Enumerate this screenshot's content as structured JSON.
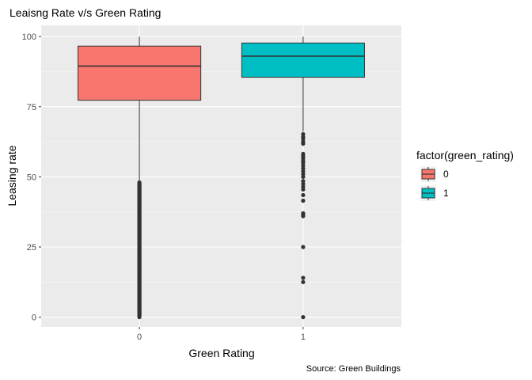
{
  "chart_data": {
    "type": "boxplot",
    "title": "Leaisng Rate v/s Green Rating",
    "xlabel": "Green Rating",
    "ylabel": "Leasing rate",
    "caption": "Source: Green Buildings",
    "categories": [
      "0",
      "1"
    ],
    "ylim": [
      -3.5,
      104
    ],
    "y_ticks": [
      0,
      25,
      50,
      75,
      100
    ],
    "grid": true,
    "legend": {
      "title": "factor(green_rating)",
      "position": "right",
      "entries": [
        {
          "label": "0",
          "color": "#F8766D"
        },
        {
          "label": "1",
          "color": "#00BFC4"
        }
      ]
    },
    "series": [
      {
        "category": "0",
        "color": "#F8766D",
        "q1": 77.3,
        "median": 89.5,
        "q3": 96.6,
        "whisker_low": 48.4,
        "whisker_high": 100,
        "outlier_band": [
          0,
          48.4
        ],
        "outliers": [
          0,
          0.5,
          1,
          1.6,
          2.2,
          3,
          4,
          5,
          6.5,
          8,
          9,
          10.5,
          11.5,
          12.5,
          13.5,
          14.8,
          16,
          17,
          18,
          19,
          20,
          21,
          22,
          23,
          24,
          25,
          26,
          27,
          28,
          29,
          30,
          31,
          32,
          33,
          34,
          35,
          36,
          37,
          38,
          39,
          40,
          41,
          42,
          43,
          44,
          45,
          46,
          47,
          48
        ]
      },
      {
        "category": "1",
        "color": "#00BFC4",
        "q1": 85.5,
        "median": 93.0,
        "q3": 97.7,
        "whisker_low": 66.2,
        "whisker_high": 100,
        "outliers": [
          65.2,
          64.2,
          63.5,
          62.5,
          61.8,
          58.2,
          57.4,
          56.6,
          55.8,
          55,
          54,
          53,
          52,
          51,
          50,
          48.5,
          47.5,
          46.5,
          45.5,
          43.5,
          41.5,
          37,
          36.5,
          36,
          25,
          14,
          12.5,
          0
        ]
      }
    ]
  },
  "colors": {
    "panel_bg": "#EBEBEB",
    "grid_major": "#FFFFFF",
    "box_outline": "#333333",
    "outlier": "#333333"
  }
}
